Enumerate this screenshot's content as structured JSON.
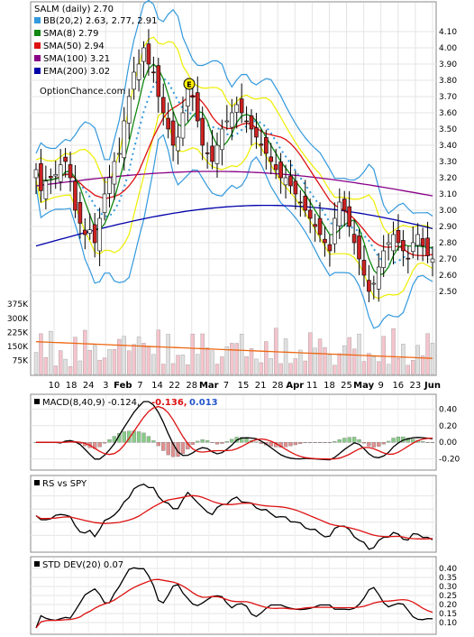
{
  "chart_data": [
    {
      "type": "candlestick",
      "panel": "price",
      "symbol_label": "SALM (daily) 2.70",
      "watermark": "OptionChance.com",
      "legend": [
        {
          "label": "BB(20,2) 2.63, 2.77, 2.91",
          "color": "#3399dd"
        },
        {
          "label": "SMA(8) 2.79",
          "color": "#118811"
        },
        {
          "label": "SMA(50) 2.94",
          "color": "#dd1111"
        },
        {
          "label": "SMA(100) 3.21",
          "color": "#880088"
        },
        {
          "label": "EMA(200) 3.02",
          "color": "#0000aa"
        }
      ],
      "ylim": [
        2.4,
        4.15
      ],
      "yticks": [
        "4.10",
        "4.00",
        "3.90",
        "3.80",
        "3.70",
        "3.60",
        "3.50",
        "3.40",
        "3.30",
        "3.20",
        "3.10",
        "3.00",
        "2.90",
        "2.80",
        "2.70",
        "2.60",
        "2.50"
      ],
      "xticks": [
        "10",
        "18",
        "24",
        "3",
        "Feb",
        "7",
        "14",
        "22",
        "28",
        "Mar",
        "7",
        "15",
        "21",
        "28",
        "Apr",
        "11",
        "18",
        "25",
        "May",
        "9",
        "16",
        "23",
        "Jun"
      ],
      "earnings_marker": "E",
      "close": [
        3.25,
        3.12,
        3.18,
        3.2,
        3.22,
        3.28,
        3.3,
        3.2,
        3.0,
        2.92,
        2.85,
        2.88,
        2.8,
        2.95,
        3.1,
        3.2,
        3.3,
        3.35,
        3.55,
        3.7,
        3.85,
        3.9,
        4.0,
        3.9,
        3.85,
        3.7,
        3.6,
        3.5,
        3.4,
        3.45,
        3.6,
        3.75,
        3.7,
        3.55,
        3.4,
        3.35,
        3.3,
        3.4,
        3.5,
        3.55,
        3.6,
        3.65,
        3.6,
        3.55,
        3.5,
        3.45,
        3.4,
        3.35,
        3.3,
        3.25,
        3.2,
        3.2,
        3.15,
        3.1,
        3.05,
        3.0,
        2.95,
        2.9,
        2.85,
        2.8,
        2.75,
        2.95,
        3.05,
        3.0,
        2.9,
        2.8,
        2.7,
        2.6,
        2.5,
        2.55,
        2.65,
        2.75,
        2.8,
        2.85,
        2.8,
        2.75,
        2.7,
        2.8,
        2.85,
        2.78,
        2.72,
        2.7
      ],
      "volume_labels": [
        "375K",
        "300K",
        "225K",
        "150K",
        "75K"
      ],
      "volume_max": 400000
    },
    {
      "type": "line",
      "panel": "macd",
      "label": "MACD(8,40,9) -0.124,",
      "value_signal": "-0.136,",
      "value_signal_color": "#dd1111",
      "value_hist": "0.013",
      "value_hist_color": "#2255cc",
      "ylim": [
        -0.28,
        0.48
      ],
      "yticks": [
        "0.40",
        "0.20",
        "0.00",
        "-0.20"
      ]
    },
    {
      "type": "line",
      "panel": "rs",
      "label": "RS vs SPY"
    },
    {
      "type": "line",
      "panel": "std",
      "label": "STD DEV(20) 0.07",
      "ylim": [
        0.05,
        0.44
      ],
      "yticks": [
        "0.40",
        "0.35",
        "0.30",
        "0.25",
        "0.20",
        "0.15",
        "0.10"
      ]
    }
  ]
}
